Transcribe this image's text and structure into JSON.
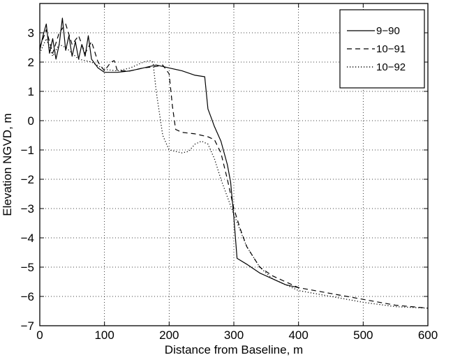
{
  "chart_data": {
    "type": "line",
    "title": "",
    "xlabel": "Distance from Baseline, m",
    "ylabel": "Elevation NGVD, m",
    "xlim": [
      0,
      600
    ],
    "ylim": [
      -7,
      4
    ],
    "xticks": [
      0,
      100,
      200,
      300,
      400,
      500,
      600
    ],
    "xtick_labels": [
      "0",
      "100",
      "200",
      "300",
      "400",
      "500",
      "600"
    ],
    "yticks": [
      -7,
      -6,
      -5,
      -4,
      -3,
      -2,
      -1,
      0,
      1,
      2,
      3
    ],
    "ytick_labels": [
      "−7",
      "−6",
      "−5",
      "−4",
      "−3",
      "−2",
      "−1",
      "0",
      "1",
      "2",
      "3"
    ],
    "grid": true,
    "legend_position": "top-right",
    "series": [
      {
        "name": "9−90",
        "line_style": "solid",
        "color": "#000000",
        "x": [
          0,
          5,
          10,
          15,
          20,
          25,
          30,
          35,
          40,
          45,
          50,
          55,
          60,
          65,
          70,
          75,
          80,
          85,
          90,
          100,
          120,
          140,
          160,
          180,
          200,
          220,
          240,
          255,
          260,
          265,
          270,
          280,
          290,
          295,
          300,
          305,
          320,
          340,
          360,
          380,
          400
        ],
        "y": [
          2.4,
          2.9,
          3.3,
          2.3,
          2.8,
          2.1,
          2.6,
          3.5,
          2.4,
          2.9,
          2.2,
          2.7,
          2.1,
          2.6,
          2.2,
          2.9,
          2.1,
          1.95,
          1.8,
          1.65,
          1.65,
          1.7,
          1.8,
          1.9,
          1.8,
          1.7,
          1.55,
          1.5,
          0.4,
          0.1,
          -0.2,
          -0.7,
          -1.5,
          -2.1,
          -3.3,
          -4.7,
          -4.9,
          -5.2,
          -5.4,
          -5.6,
          -5.7
        ]
      },
      {
        "name": "10−91",
        "line_style": "dashed",
        "color": "#000000",
        "x": [
          0,
          10,
          20,
          30,
          40,
          50,
          60,
          70,
          80,
          90,
          100,
          110,
          115,
          120,
          140,
          160,
          180,
          190,
          200,
          205,
          210,
          220,
          240,
          260,
          270,
          280,
          290,
          300,
          310,
          320,
          340,
          360,
          380,
          400,
          450,
          500,
          550,
          600
        ],
        "y": [
          2.5,
          3.1,
          2.3,
          3.0,
          3.3,
          2.6,
          2.9,
          2.3,
          2.7,
          2.0,
          1.7,
          2.0,
          2.05,
          1.7,
          1.7,
          1.8,
          1.85,
          1.9,
          1.6,
          0.5,
          -0.3,
          -0.4,
          -0.45,
          -0.55,
          -0.65,
          -1.1,
          -2.0,
          -3.0,
          -3.7,
          -4.3,
          -5.0,
          -5.3,
          -5.5,
          -5.7,
          -5.9,
          -6.1,
          -6.3,
          -6.4
        ]
      },
      {
        "name": "10−92",
        "line_style": "dotted",
        "color": "#000000",
        "x": [
          0,
          10,
          20,
          30,
          40,
          60,
          80,
          100,
          120,
          140,
          160,
          170,
          175,
          180,
          190,
          200,
          210,
          220,
          230,
          240,
          250,
          260,
          270,
          280,
          290,
          300,
          320,
          340,
          360,
          380,
          400,
          450,
          500,
          550,
          600
        ],
        "y": [
          2.3,
          2.8,
          2.2,
          2.6,
          2.5,
          2.1,
          2.0,
          1.75,
          1.7,
          1.8,
          2.0,
          2.05,
          2.0,
          1.0,
          -0.5,
          -1.0,
          -1.05,
          -1.1,
          -1.05,
          -0.8,
          -0.7,
          -0.8,
          -1.3,
          -2.0,
          -2.6,
          -3.2,
          -4.3,
          -5.0,
          -5.4,
          -5.6,
          -5.8,
          -6.0,
          -6.2,
          -6.35,
          -6.4
        ]
      }
    ]
  }
}
